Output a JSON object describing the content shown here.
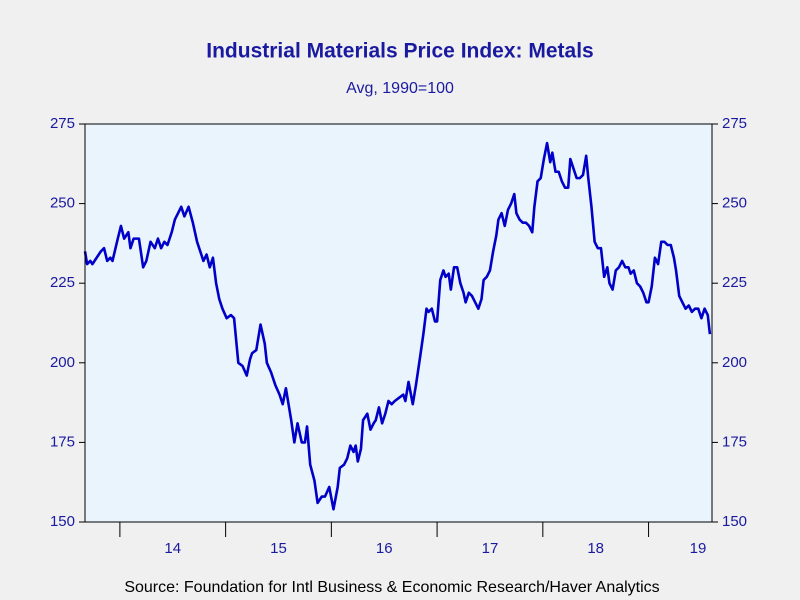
{
  "chart_data": {
    "type": "line",
    "title": "Industrial Materials Price Index: Metals",
    "subtitle": "Avg, 1990=100",
    "source": "Source:  Foundation for Intl Business & Economic Research/Haver Analytics",
    "xlim": [
      2013.67,
      2019.6
    ],
    "xticks": [
      {
        "value": 2014,
        "label": "14"
      },
      {
        "value": 2015,
        "label": "15"
      },
      {
        "value": 2016,
        "label": "16"
      },
      {
        "value": 2017,
        "label": "17"
      },
      {
        "value": 2018,
        "label": "18"
      },
      {
        "value": 2019,
        "label": "19"
      }
    ],
    "ylim": [
      150,
      275
    ],
    "yticks": [
      150,
      175,
      200,
      225,
      250,
      275
    ],
    "y2lim": [
      150,
      275
    ],
    "y2ticks": [
      150,
      175,
      200,
      225,
      250,
      275
    ],
    "grid": false,
    "color": "#0000c8",
    "x": [
      2013.67,
      2013.69,
      2013.72,
      2013.74,
      2013.78,
      2013.82,
      2013.85,
      2013.88,
      2013.91,
      2013.93,
      2013.98,
      2014.01,
      2014.04,
      2014.08,
      2014.1,
      2014.13,
      2014.18,
      2014.22,
      2014.25,
      2014.29,
      2014.33,
      2014.36,
      2014.39,
      2014.42,
      2014.45,
      2014.49,
      2014.52,
      2014.55,
      2014.58,
      2014.61,
      2014.65,
      2014.69,
      2014.73,
      2014.75,
      2014.79,
      2014.82,
      2014.85,
      2014.88,
      2014.91,
      2014.94,
      2014.97,
      2015.01,
      2015.05,
      2015.08,
      2015.12,
      2015.16,
      2015.2,
      2015.23,
      2015.25,
      2015.29,
      2015.33,
      2015.37,
      2015.39,
      2015.43,
      2015.47,
      2015.51,
      2015.54,
      2015.57,
      2015.59,
      2015.62,
      2015.65,
      2015.68,
      2015.72,
      2015.75,
      2015.77,
      2015.8,
      2015.84,
      2015.87,
      2015.91,
      2015.94,
      2015.98,
      2016.02,
      2016.06,
      2016.08,
      2016.12,
      2016.15,
      2016.18,
      2016.21,
      2016.23,
      2016.25,
      2016.28,
      2016.3,
      2016.34,
      2016.37,
      2016.4,
      2016.42,
      2016.45,
      2016.48,
      2016.51,
      2016.54,
      2016.57,
      2016.6,
      2016.64,
      2016.68,
      2016.7,
      2016.73,
      2016.77,
      2016.8,
      2016.84,
      2016.87,
      2016.9,
      2016.92,
      2016.95,
      2016.98,
      2017.0,
      2017.03,
      2017.06,
      2017.08,
      2017.11,
      2017.13,
      2017.16,
      2017.19,
      2017.22,
      2017.25,
      2017.27,
      2017.3,
      2017.33,
      2017.36,
      2017.39,
      2017.42,
      2017.44,
      2017.47,
      2017.5,
      2017.53,
      2017.56,
      2017.58,
      2017.61,
      2017.64,
      2017.67,
      2017.7,
      2017.73,
      2017.75,
      2017.78,
      2017.81,
      2017.84,
      2017.87,
      2017.9,
      2017.92,
      2017.95,
      2017.98,
      2018.01,
      2018.04,
      2018.07,
      2018.09,
      2018.12,
      2018.15,
      2018.18,
      2018.21,
      2018.24,
      2018.26,
      2018.29,
      2018.32,
      2018.35,
      2018.38,
      2018.41,
      2018.43,
      2018.46,
      2018.49,
      2018.52,
      2018.55,
      2018.58,
      2018.61,
      2018.63,
      2018.66,
      2018.69,
      2018.72,
      2018.75,
      2018.78,
      2018.81,
      2018.83,
      2018.86,
      2018.89,
      2018.92,
      2018.95,
      2018.98,
      2019.0,
      2019.03,
      2019.06,
      2019.09,
      2019.12,
      2019.15,
      2019.18,
      2019.21,
      2019.24,
      2019.26,
      2019.29,
      2019.32,
      2019.35,
      2019.38,
      2019.41,
      2019.44,
      2019.47,
      2019.5,
      2019.53,
      2019.56,
      2019.58
    ],
    "values": [
      235,
      231,
      232,
      231,
      233,
      235,
      236,
      232,
      233,
      232,
      239,
      243,
      239,
      241,
      236,
      239,
      239,
      230,
      232,
      238,
      236,
      239,
      236,
      238,
      237,
      241,
      245,
      247,
      249,
      246,
      249,
      244,
      238,
      236,
      232,
      234,
      230,
      233,
      225,
      220,
      217,
      214,
      215,
      214,
      200,
      199,
      196,
      201,
      203,
      204,
      212,
      206,
      200,
      197,
      193,
      190,
      187,
      192,
      188,
      182,
      175,
      181,
      175,
      175,
      180,
      168,
      163,
      156,
      158,
      158,
      161,
      154,
      161,
      167,
      168,
      170,
      174,
      172,
      174,
      169,
      173,
      182,
      184,
      179,
      181,
      182,
      186,
      181,
      184,
      188,
      187,
      188,
      189,
      190,
      188,
      194,
      187,
      193,
      202,
      209,
      217,
      216,
      217,
      213,
      213,
      226,
      229,
      227,
      228,
      223,
      230,
      230,
      225,
      222,
      219,
      222,
      221,
      219,
      217,
      220,
      226,
      227,
      229,
      235,
      240,
      245,
      247,
      243,
      248,
      250,
      253,
      247,
      245,
      244,
      244,
      243,
      241,
      249,
      257,
      258,
      264,
      269,
      263,
      266,
      260,
      260,
      257,
      255,
      255,
      264,
      261,
      258,
      258,
      259,
      265,
      258,
      249,
      238,
      236,
      236,
      227,
      230,
      225,
      223,
      229,
      230,
      232,
      230,
      230,
      228,
      229,
      225,
      224,
      222,
      219,
      219,
      224,
      233,
      231,
      238,
      238,
      237,
      237,
      233,
      229,
      221,
      219,
      217,
      218,
      216,
      217,
      217,
      214,
      217,
      215,
      209
    ]
  }
}
